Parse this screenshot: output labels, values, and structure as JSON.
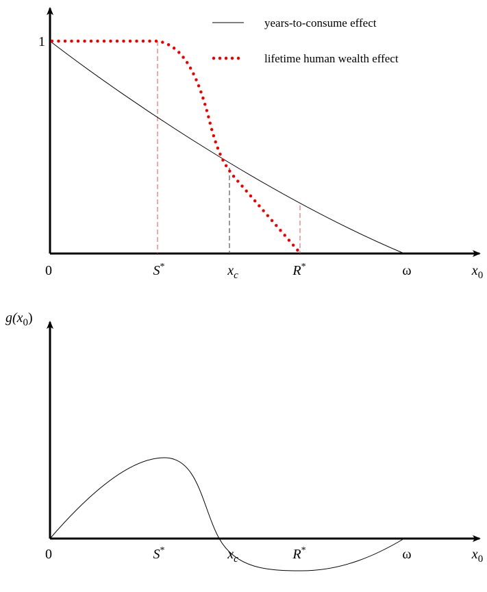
{
  "top_plot": {
    "y_label": "1",
    "x_labels": [
      {
        "base": "0"
      },
      {
        "base": "S",
        "sup": "*"
      },
      {
        "base": "x",
        "sub": "c"
      },
      {
        "base": "R",
        "sup": "*"
      },
      {
        "base": "ω"
      },
      {
        "base": "x",
        "sub": "0"
      }
    ],
    "legend": [
      "years-to-consume effect",
      "lifetime human wealth effect"
    ]
  },
  "bottom_plot": {
    "y_label": {
      "base": "g(x",
      "sub": "0",
      "tail": ")"
    },
    "x_labels": [
      {
        "base": "0"
      },
      {
        "base": "S",
        "sup": "*"
      },
      {
        "base": "x",
        "sub": "c"
      },
      {
        "base": "R",
        "sup": "*"
      },
      {
        "base": "ω"
      },
      {
        "base": "x",
        "sub": "0"
      }
    ]
  }
}
